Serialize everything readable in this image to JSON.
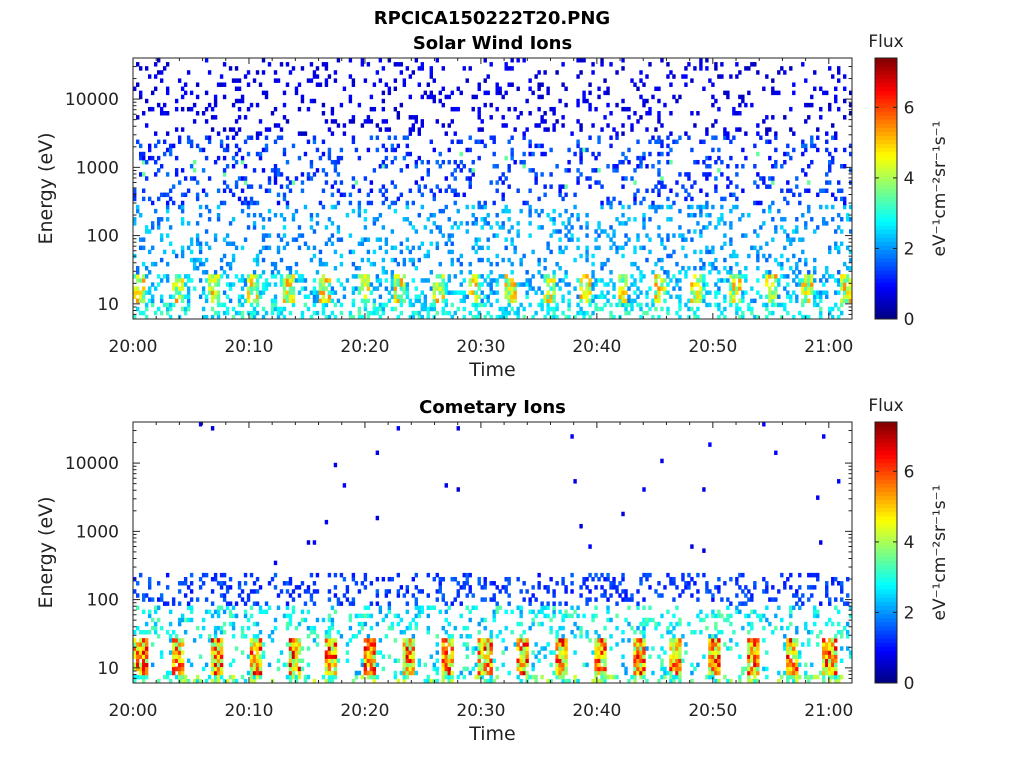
{
  "figure_title": "RPCICA150222T20.PNG",
  "chart_data": [
    {
      "type": "heatmap",
      "title": "Solar Wind Ions",
      "xlabel": "Time",
      "ylabel": "Energy (eV)",
      "x_range": [
        "20:00",
        "21:02"
      ],
      "x_ticks": [
        "20:00",
        "20:10",
        "20:20",
        "20:30",
        "20:40",
        "20:50",
        "21:00"
      ],
      "y_scale": "log",
      "y_range": [
        6,
        40000
      ],
      "y_ticks": [
        "10",
        "100",
        "1000",
        "10000"
      ],
      "colorbar": {
        "label": "Flux",
        "units": "eV⁻¹cm⁻²sr⁻¹s⁻¹",
        "range": [
          0,
          7.4
        ],
        "ticks": [
          "0",
          "2",
          "4",
          "6"
        ],
        "colormap": "jet"
      },
      "pattern": "sparse",
      "cycle_minutes": 3.2,
      "peak_band_eV": [
        10,
        28
      ],
      "peak_flux": 5.5
    },
    {
      "type": "heatmap",
      "title": "Cometary Ions",
      "xlabel": "Time",
      "ylabel": "Energy (eV)",
      "x_range": [
        "20:00",
        "21:02"
      ],
      "x_ticks": [
        "20:00",
        "20:10",
        "20:20",
        "20:30",
        "20:40",
        "20:50",
        "21:00"
      ],
      "y_scale": "log",
      "y_range": [
        6,
        40000
      ],
      "y_ticks": [
        "10",
        "100",
        "1000",
        "10000"
      ],
      "colorbar": {
        "label": "Flux",
        "units": "eV⁻¹cm⁻²sr⁻¹s⁻¹",
        "range": [
          0,
          7.4
        ],
        "ticks": [
          "0",
          "2",
          "4",
          "6"
        ],
        "colormap": "jet"
      },
      "pattern": "dense_low",
      "cycle_minutes": 3.3,
      "peak_band_eV": [
        8,
        28
      ],
      "peak_flux": 6.8
    }
  ]
}
